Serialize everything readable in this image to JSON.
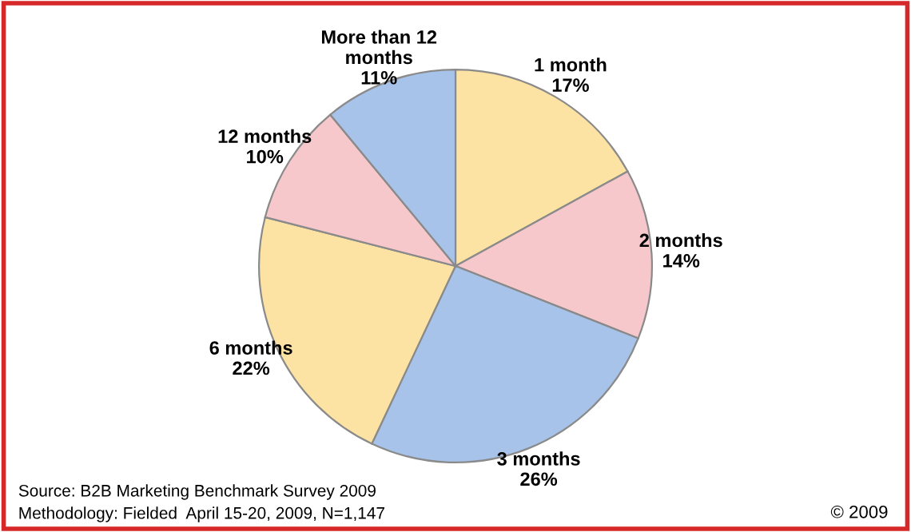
{
  "chart_data": {
    "type": "pie",
    "categories": [
      "1 month",
      "2 months",
      "3 months",
      "6 months",
      "12 months",
      "More than 12\nmonths"
    ],
    "values": [
      17,
      14,
      26,
      22,
      10,
      11
    ],
    "value_labels": [
      "17%",
      "14%",
      "26%",
      "22%",
      "10%",
      "11%"
    ],
    "colors": [
      "#fde3a3",
      "#f6c8cb",
      "#a8c3ea",
      "#fde3a3",
      "#f6c8cb",
      "#a8c3ea"
    ],
    "annotations": [
      "Source: B2B Marketing Benchmark Survey 2009",
      "Methodology: Fielded  April 15-20, 2009, N=1,147",
      "© 2009"
    ]
  }
}
